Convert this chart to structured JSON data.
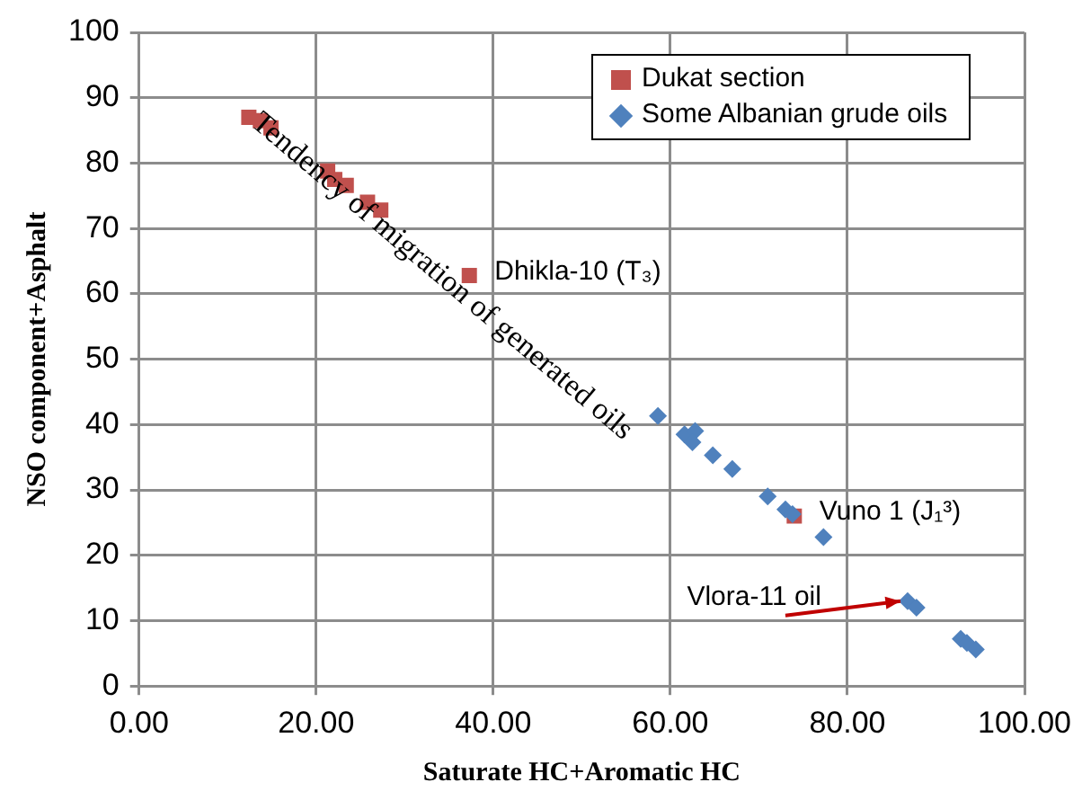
{
  "chart_data": {
    "type": "scatter",
    "xlabel": "Saturate HC+Aromatic HC",
    "ylabel": "NSO component+Asphalt",
    "xlim": [
      0,
      100
    ],
    "ylim": [
      0,
      100
    ],
    "xticks": [
      {
        "value": 0,
        "label": "0.00"
      },
      {
        "value": 20,
        "label": "20.00"
      },
      {
        "value": 40,
        "label": "40.00"
      },
      {
        "value": 60,
        "label": "60.00"
      },
      {
        "value": 80,
        "label": "80.00"
      },
      {
        "value": 100,
        "label": "100.00"
      }
    ],
    "yticks": [
      0,
      10,
      20,
      30,
      40,
      50,
      60,
      70,
      80,
      90,
      100
    ],
    "grid": true,
    "legend": "top right",
    "series": [
      {
        "name": "Dukat section",
        "color": "#c0504d",
        "marker": "square",
        "x": [
          12.4,
          13.7,
          14.9,
          21.3,
          22.1,
          23.4,
          25.8,
          27.3,
          37.3,
          74
        ],
        "values": [
          87,
          86.5,
          85.4,
          78.8,
          77.5,
          76.6,
          74,
          72.8,
          62.8,
          26
        ]
      },
      {
        "name": "Some Albanian grude oils",
        "color": "#4f81bd",
        "marker": "diamond",
        "x": [
          58.6,
          61.6,
          62.8,
          62.5,
          64.8,
          67,
          71,
          73,
          73.8,
          77.3,
          86.8,
          87.8,
          92.8,
          93.5,
          94.5
        ],
        "values": [
          41.3,
          38.5,
          39,
          37.3,
          35.3,
          33.2,
          29,
          27,
          26.3,
          22.8,
          13,
          12,
          7.2,
          6.6,
          5.6
        ]
      }
    ],
    "annotations": [
      "Tendency of migration of generated oils",
      {
        "text": "Dhikla-10 (T₃)",
        "x": 37.3,
        "y": 62.8
      },
      {
        "text": "Vuno 1 (J₁³)",
        "x": 74,
        "y": 26
      },
      {
        "text": "Vlora-11 oil",
        "x": 86.8,
        "y": 13
      }
    ]
  }
}
